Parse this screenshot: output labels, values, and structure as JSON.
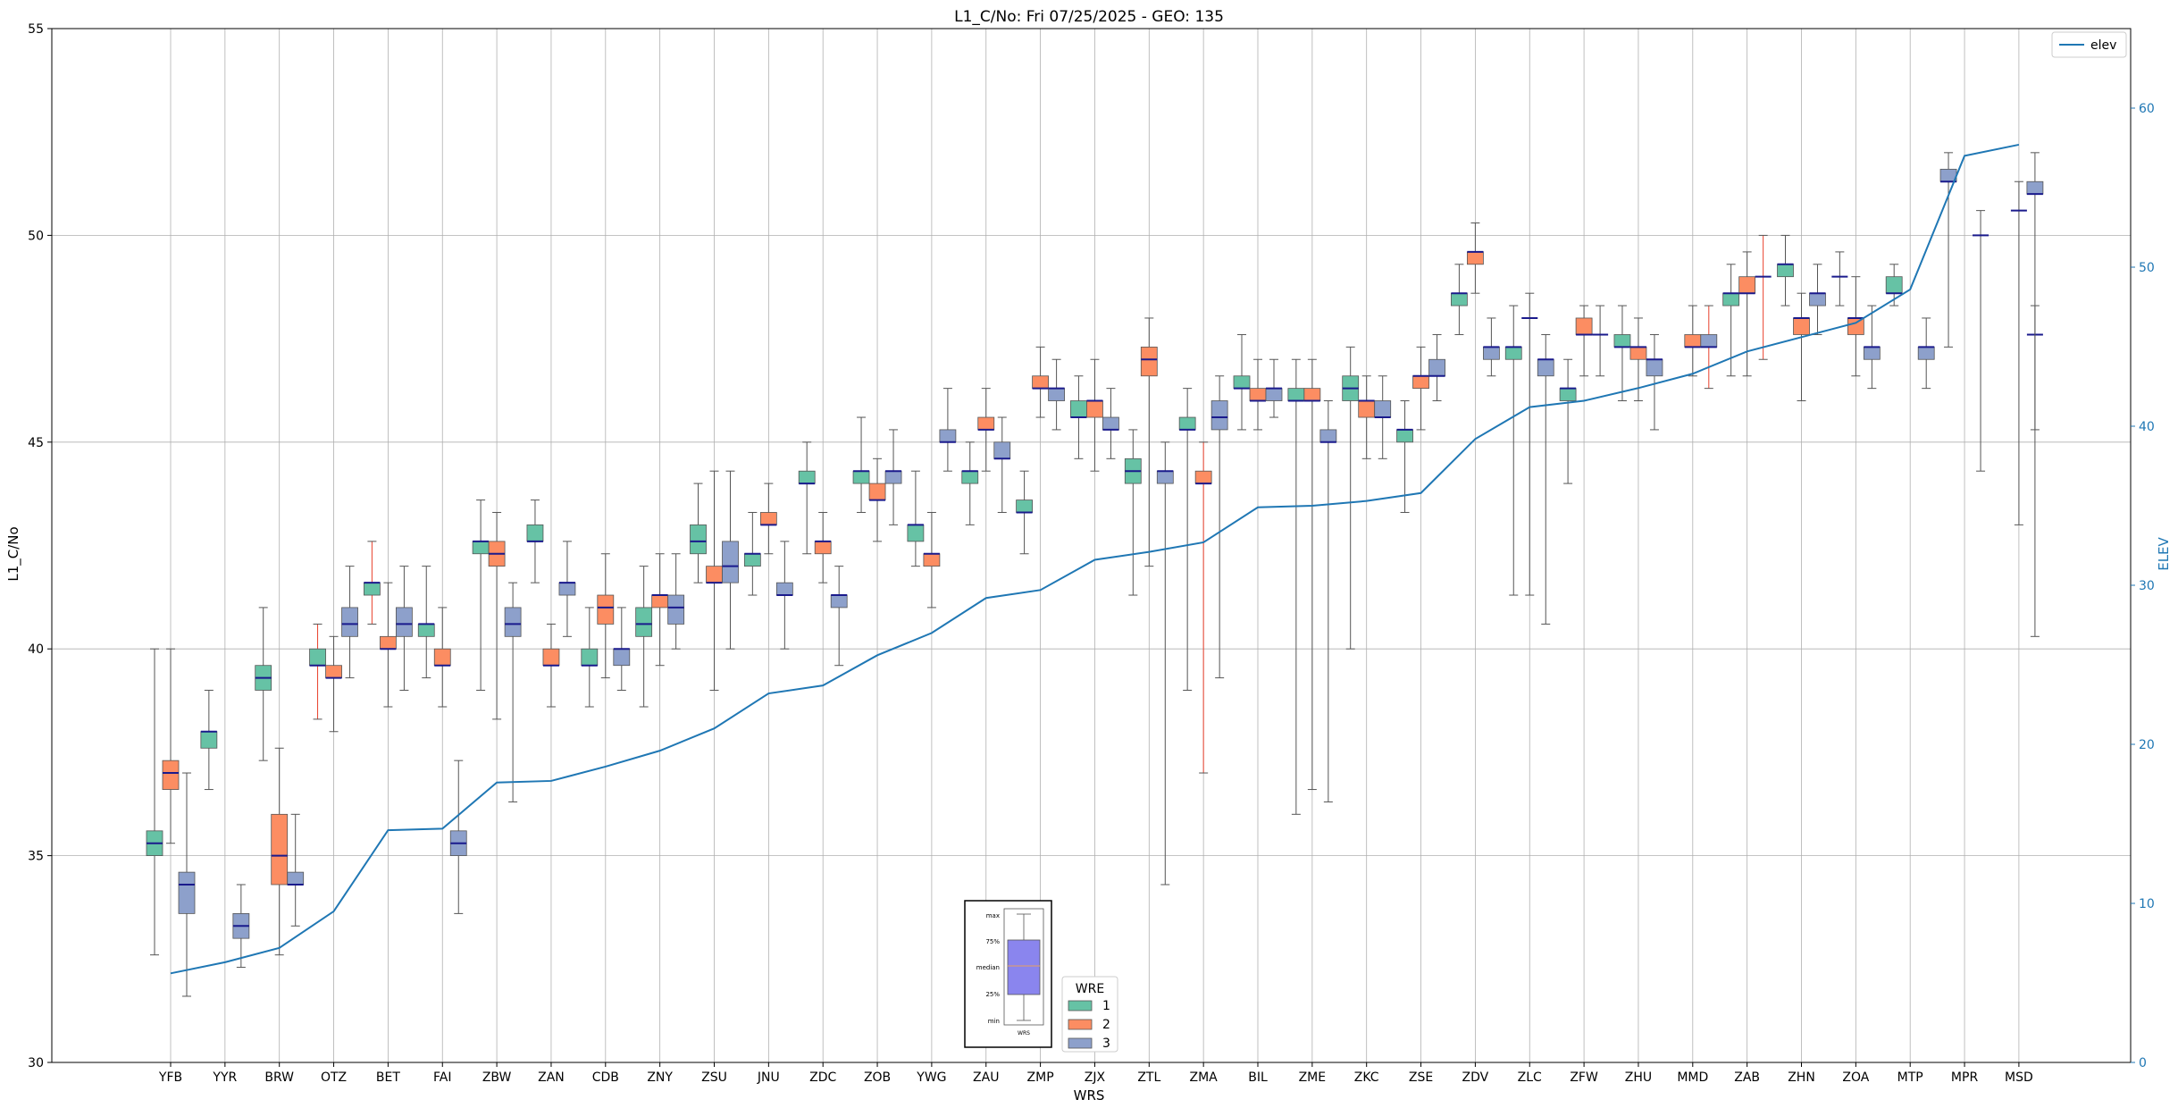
{
  "chart_data": {
    "type": "box",
    "title": "L1_C/No: Fri 07/25/2025 - GEO: 135",
    "xlabel": "WRS",
    "ylabel": "L1_C/No",
    "y2label": "ELEV",
    "ylim": [
      30,
      55
    ],
    "y2lim": [
      0,
      65
    ],
    "yticks": [
      30,
      35,
      40,
      45,
      50,
      55
    ],
    "y2ticks": [
      0,
      10,
      20,
      30,
      40,
      50,
      60
    ],
    "grid": true,
    "categories": [
      "YFB",
      "YYR",
      "BRW",
      "OTZ",
      "BET",
      "FAI",
      "ZBW",
      "ZAN",
      "CDB",
      "ZNY",
      "ZSU",
      "JNU",
      "ZDC",
      "ZOB",
      "YWG",
      "ZAU",
      "ZMP",
      "ZJX",
      "ZTL",
      "ZMA",
      "BIL",
      "ZME",
      "ZKC",
      "ZSE",
      "ZDV",
      "ZLC",
      "ZFW",
      "ZHU",
      "MMD",
      "ZAB",
      "ZHN",
      "ZOA",
      "MTP",
      "MPR",
      "MSD"
    ],
    "legend_elev": {
      "label": "elev",
      "placement": "upper right",
      "color": "#1f77b4"
    },
    "legend_wre": {
      "title": "WRE",
      "placement": "lower center",
      "items": [
        {
          "label": "1",
          "color": "#66c2a5"
        },
        {
          "label": "2",
          "color": "#fc8d62"
        },
        {
          "label": "3",
          "color": "#8da0cb"
        }
      ]
    },
    "box_key": {
      "labels": [
        "max",
        "75%",
        "median",
        "25%",
        "min"
      ],
      "xlabel": "WRS",
      "fill": "#8a85ee"
    },
    "elev": {
      "name": "elev",
      "color": "#1f77b4",
      "values": [
        5.6,
        6.3,
        7.2,
        9.5,
        14.6,
        14.7,
        17.6,
        17.7,
        18.6,
        19.6,
        21.0,
        23.2,
        23.7,
        25.6,
        27.0,
        29.2,
        29.7,
        31.6,
        32.1,
        32.7,
        34.9,
        35.0,
        35.3,
        35.8,
        39.2,
        41.2,
        41.6,
        42.4,
        43.3,
        44.7,
        45.6,
        46.5,
        48.6,
        57.0,
        57.7
      ]
    },
    "boxes": [
      {
        "cat": "YFB",
        "wre": 1,
        "min": 32.6,
        "q1": 35.0,
        "median": 35.3,
        "q3": 35.6,
        "max": 40.0
      },
      {
        "cat": "YFB",
        "wre": 2,
        "min": 35.3,
        "q1": 36.6,
        "median": 37.0,
        "q3": 37.3,
        "max": 40.0
      },
      {
        "cat": "YFB",
        "wre": 3,
        "min": 31.6,
        "q1": 33.6,
        "median": 34.3,
        "q3": 34.6,
        "max": 37.0
      },
      {
        "cat": "YYR",
        "wre": 1,
        "min": 36.6,
        "q1": 37.6,
        "median": 38.0,
        "q3": 38.0,
        "max": 39.0
      },
      {
        "cat": "YYR",
        "wre": 3,
        "min": 32.3,
        "q1": 33.0,
        "median": 33.3,
        "q3": 33.6,
        "max": 34.3
      },
      {
        "cat": "BRW",
        "wre": 1,
        "min": 37.3,
        "q1": 39.0,
        "median": 39.3,
        "q3": 39.6,
        "max": 41.0
      },
      {
        "cat": "BRW",
        "wre": 2,
        "min": 32.6,
        "q1": 34.3,
        "median": 35.0,
        "q3": 36.0,
        "max": 37.6
      },
      {
        "cat": "BRW",
        "wre": 3,
        "min": 33.3,
        "q1": 34.3,
        "median": 34.3,
        "q3": 34.6,
        "max": 36.0
      },
      {
        "cat": "OTZ",
        "wre": 1,
        "min": 38.3,
        "q1": 39.6,
        "median": 39.6,
        "q3": 40.0,
        "max": 40.6,
        "red": true
      },
      {
        "cat": "OTZ",
        "wre": 2,
        "min": 38.0,
        "q1": 39.3,
        "median": 39.3,
        "q3": 39.6,
        "max": 40.3
      },
      {
        "cat": "OTZ",
        "wre": 3,
        "min": 39.3,
        "q1": 40.3,
        "median": 40.6,
        "q3": 41.0,
        "max": 42.0
      },
      {
        "cat": "BET",
        "wre": 1,
        "min": 40.6,
        "q1": 41.3,
        "median": 41.6,
        "q3": 41.6,
        "max": 42.6,
        "red": true
      },
      {
        "cat": "BET",
        "wre": 2,
        "min": 38.6,
        "q1": 40.0,
        "median": 40.0,
        "q3": 40.3,
        "max": 41.6
      },
      {
        "cat": "BET",
        "wre": 3,
        "min": 39.0,
        "q1": 40.3,
        "median": 40.6,
        "q3": 41.0,
        "max": 42.0
      },
      {
        "cat": "FAI",
        "wre": 1,
        "min": 39.3,
        "q1": 40.3,
        "median": 40.6,
        "q3": 40.6,
        "max": 42.0
      },
      {
        "cat": "FAI",
        "wre": 2,
        "min": 38.6,
        "q1": 39.6,
        "median": 39.6,
        "q3": 40.0,
        "max": 41.0
      },
      {
        "cat": "FAI",
        "wre": 3,
        "min": 33.6,
        "q1": 35.0,
        "median": 35.3,
        "q3": 35.6,
        "max": 37.3
      },
      {
        "cat": "ZBW",
        "wre": 1,
        "min": 39.0,
        "q1": 42.3,
        "median": 42.6,
        "q3": 42.6,
        "max": 43.6
      },
      {
        "cat": "ZBW",
        "wre": 2,
        "min": 38.3,
        "q1": 42.0,
        "median": 42.3,
        "q3": 42.6,
        "max": 43.3
      },
      {
        "cat": "ZBW",
        "wre": 3,
        "min": 36.3,
        "q1": 40.3,
        "median": 40.6,
        "q3": 41.0,
        "max": 41.6
      },
      {
        "cat": "ZAN",
        "wre": 1,
        "min": 41.6,
        "q1": 42.6,
        "median": 42.6,
        "q3": 43.0,
        "max": 43.6
      },
      {
        "cat": "ZAN",
        "wre": 2,
        "min": 38.6,
        "q1": 39.6,
        "median": 39.6,
        "q3": 40.0,
        "max": 40.6
      },
      {
        "cat": "ZAN",
        "wre": 3,
        "min": 40.3,
        "q1": 41.3,
        "median": 41.6,
        "q3": 41.6,
        "max": 42.6
      },
      {
        "cat": "CDB",
        "wre": 1,
        "min": 38.6,
        "q1": 39.6,
        "median": 39.6,
        "q3": 40.0,
        "max": 41.0
      },
      {
        "cat": "CDB",
        "wre": 2,
        "min": 39.3,
        "q1": 40.6,
        "median": 41.0,
        "q3": 41.3,
        "max": 42.3
      },
      {
        "cat": "CDB",
        "wre": 3,
        "min": 39.0,
        "q1": 39.6,
        "median": 40.0,
        "q3": 40.0,
        "max": 41.0
      },
      {
        "cat": "ZNY",
        "wre": 1,
        "min": 38.6,
        "q1": 40.3,
        "median": 40.6,
        "q3": 41.0,
        "max": 42.0
      },
      {
        "cat": "ZNY",
        "wre": 2,
        "min": 39.6,
        "q1": 41.0,
        "median": 41.3,
        "q3": 41.3,
        "max": 42.3
      },
      {
        "cat": "ZNY",
        "wre": 3,
        "min": 40.0,
        "q1": 40.6,
        "median": 41.0,
        "q3": 41.3,
        "max": 42.3
      },
      {
        "cat": "ZSU",
        "wre": 1,
        "min": 41.6,
        "q1": 42.3,
        "median": 42.6,
        "q3": 43.0,
        "max": 44.0
      },
      {
        "cat": "ZSU",
        "wre": 2,
        "min": 39.0,
        "q1": 41.6,
        "median": 41.6,
        "q3": 42.0,
        "max": 44.3
      },
      {
        "cat": "ZSU",
        "wre": 3,
        "min": 40.0,
        "q1": 41.6,
        "median": 42.0,
        "q3": 42.6,
        "max": 44.3
      },
      {
        "cat": "JNU",
        "wre": 1,
        "min": 41.3,
        "q1": 42.0,
        "median": 42.3,
        "q3": 42.3,
        "max": 43.3
      },
      {
        "cat": "JNU",
        "wre": 2,
        "min": 42.3,
        "q1": 43.0,
        "median": 43.0,
        "q3": 43.3,
        "max": 44.0
      },
      {
        "cat": "JNU",
        "wre": 3,
        "min": 40.0,
        "q1": 41.3,
        "median": 41.3,
        "q3": 41.6,
        "max": 42.6
      },
      {
        "cat": "ZDC",
        "wre": 1,
        "min": 42.3,
        "q1": 44.0,
        "median": 44.0,
        "q3": 44.3,
        "max": 45.0
      },
      {
        "cat": "ZDC",
        "wre": 2,
        "min": 41.6,
        "q1": 42.3,
        "median": 42.6,
        "q3": 42.6,
        "max": 43.3
      },
      {
        "cat": "ZDC",
        "wre": 3,
        "min": 39.6,
        "q1": 41.0,
        "median": 41.3,
        "q3": 41.3,
        "max": 42.0
      },
      {
        "cat": "ZOB",
        "wre": 1,
        "min": 43.3,
        "q1": 44.0,
        "median": 44.3,
        "q3": 44.3,
        "max": 45.6
      },
      {
        "cat": "ZOB",
        "wre": 2,
        "min": 42.6,
        "q1": 43.6,
        "median": 43.6,
        "q3": 44.0,
        "max": 44.6
      },
      {
        "cat": "ZOB",
        "wre": 3,
        "min": 43.0,
        "q1": 44.0,
        "median": 44.3,
        "q3": 44.3,
        "max": 45.3
      },
      {
        "cat": "YWG",
        "wre": 1,
        "min": 42.0,
        "q1": 42.6,
        "median": 43.0,
        "q3": 43.0,
        "max": 44.3
      },
      {
        "cat": "YWG",
        "wre": 2,
        "min": 41.0,
        "q1": 42.0,
        "median": 42.3,
        "q3": 42.3,
        "max": 43.3
      },
      {
        "cat": "YWG",
        "wre": 3,
        "min": 44.3,
        "q1": 45.0,
        "median": 45.0,
        "q3": 45.3,
        "max": 46.3
      },
      {
        "cat": "ZAU",
        "wre": 1,
        "min": 43.0,
        "q1": 44.0,
        "median": 44.3,
        "q3": 44.3,
        "max": 45.0
      },
      {
        "cat": "ZAU",
        "wre": 2,
        "min": 44.3,
        "q1": 45.3,
        "median": 45.3,
        "q3": 45.6,
        "max": 46.3
      },
      {
        "cat": "ZAU",
        "wre": 3,
        "min": 43.3,
        "q1": 44.6,
        "median": 44.6,
        "q3": 45.0,
        "max": 45.6
      },
      {
        "cat": "ZMP",
        "wre": 1,
        "min": 42.3,
        "q1": 43.3,
        "median": 43.3,
        "q3": 43.6,
        "max": 44.3
      },
      {
        "cat": "ZMP",
        "wre": 2,
        "min": 45.6,
        "q1": 46.3,
        "median": 46.3,
        "q3": 46.6,
        "max": 47.3
      },
      {
        "cat": "ZMP",
        "wre": 3,
        "min": 45.3,
        "q1": 46.0,
        "median": 46.3,
        "q3": 46.3,
        "max": 47.0
      },
      {
        "cat": "ZJX",
        "wre": 1,
        "min": 44.6,
        "q1": 45.6,
        "median": 45.6,
        "q3": 46.0,
        "max": 46.6
      },
      {
        "cat": "ZJX",
        "wre": 2,
        "min": 44.3,
        "q1": 45.6,
        "median": 46.0,
        "q3": 46.0,
        "max": 47.0
      },
      {
        "cat": "ZJX",
        "wre": 3,
        "min": 44.6,
        "q1": 45.3,
        "median": 45.3,
        "q3": 45.6,
        "max": 46.3
      },
      {
        "cat": "ZTL",
        "wre": 1,
        "min": 41.3,
        "q1": 44.0,
        "median": 44.3,
        "q3": 44.6,
        "max": 45.3
      },
      {
        "cat": "ZTL",
        "wre": 2,
        "min": 42.0,
        "q1": 46.6,
        "median": 47.0,
        "q3": 47.3,
        "max": 48.0
      },
      {
        "cat": "ZTL",
        "wre": 3,
        "min": 34.3,
        "q1": 44.0,
        "median": 44.3,
        "q3": 44.3,
        "max": 45.0
      },
      {
        "cat": "ZMA",
        "wre": 1,
        "min": 39.0,
        "q1": 45.3,
        "median": 45.3,
        "q3": 45.6,
        "max": 46.3
      },
      {
        "cat": "ZMA",
        "wre": 2,
        "min": 37.0,
        "q1": 44.0,
        "median": 44.0,
        "q3": 44.3,
        "max": 45.0,
        "red": true
      },
      {
        "cat": "ZMA",
        "wre": 3,
        "min": 39.3,
        "q1": 45.3,
        "median": 45.6,
        "q3": 46.0,
        "max": 46.6
      },
      {
        "cat": "BIL",
        "wre": 1,
        "min": 45.3,
        "q1": 46.3,
        "median": 46.3,
        "q3": 46.6,
        "max": 47.6
      },
      {
        "cat": "BIL",
        "wre": 2,
        "min": 45.3,
        "q1": 46.0,
        "median": 46.0,
        "q3": 46.3,
        "max": 47.0
      },
      {
        "cat": "BIL",
        "wre": 3,
        "min": 45.6,
        "q1": 46.0,
        "median": 46.3,
        "q3": 46.3,
        "max": 47.0
      },
      {
        "cat": "ZME",
        "wre": 1,
        "min": 36.0,
        "q1": 46.0,
        "median": 46.0,
        "q3": 46.3,
        "max": 47.0
      },
      {
        "cat": "ZME",
        "wre": 2,
        "min": 36.6,
        "q1": 46.0,
        "median": 46.0,
        "q3": 46.3,
        "max": 47.0
      },
      {
        "cat": "ZME",
        "wre": 3,
        "min": 36.3,
        "q1": 45.0,
        "median": 45.0,
        "q3": 45.3,
        "max": 46.0
      },
      {
        "cat": "ZKC",
        "wre": 1,
        "min": 40.0,
        "q1": 46.0,
        "median": 46.3,
        "q3": 46.6,
        "max": 47.3
      },
      {
        "cat": "ZKC",
        "wre": 2,
        "min": 44.6,
        "q1": 45.6,
        "median": 46.0,
        "q3": 46.0,
        "max": 46.6
      },
      {
        "cat": "ZKC",
        "wre": 3,
        "min": 44.6,
        "q1": 45.6,
        "median": 45.6,
        "q3": 46.0,
        "max": 46.6
      },
      {
        "cat": "ZSE",
        "wre": 1,
        "min": 43.3,
        "q1": 45.0,
        "median": 45.3,
        "q3": 45.3,
        "max": 46.0
      },
      {
        "cat": "ZSE",
        "wre": 2,
        "min": 45.3,
        "q1": 46.3,
        "median": 46.6,
        "q3": 46.6,
        "max": 47.3
      },
      {
        "cat": "ZSE",
        "wre": 3,
        "min": 46.0,
        "q1": 46.6,
        "median": 46.6,
        "q3": 47.0,
        "max": 47.6
      },
      {
        "cat": "ZDV",
        "wre": 1,
        "min": 47.6,
        "q1": 48.3,
        "median": 48.6,
        "q3": 48.6,
        "max": 49.3
      },
      {
        "cat": "ZDV",
        "wre": 2,
        "min": 48.6,
        "q1": 49.3,
        "median": 49.6,
        "q3": 49.6,
        "max": 50.3
      },
      {
        "cat": "ZDV",
        "wre": 3,
        "min": 46.6,
        "q1": 47.0,
        "median": 47.3,
        "q3": 47.3,
        "max": 48.0
      },
      {
        "cat": "ZLC",
        "wre": 1,
        "min": 41.3,
        "q1": 47.0,
        "median": 47.3,
        "q3": 47.3,
        "max": 48.3
      },
      {
        "cat": "ZLC",
        "wre": 2,
        "min": 41.3,
        "q1": 48.0,
        "median": 48.0,
        "q3": 48.0,
        "max": 48.6
      },
      {
        "cat": "ZLC",
        "wre": 3,
        "min": 40.6,
        "q1": 46.6,
        "median": 47.0,
        "q3": 47.0,
        "max": 47.6
      },
      {
        "cat": "ZFW",
        "wre": 1,
        "min": 44.0,
        "q1": 46.0,
        "median": 46.3,
        "q3": 46.3,
        "max": 47.0
      },
      {
        "cat": "ZFW",
        "wre": 2,
        "min": 46.6,
        "q1": 47.6,
        "median": 47.6,
        "q3": 48.0,
        "max": 48.3
      },
      {
        "cat": "ZFW",
        "wre": 3,
        "min": 46.6,
        "q1": 47.6,
        "median": 47.6,
        "q3": 47.6,
        "max": 48.3
      },
      {
        "cat": "ZHU",
        "wre": 1,
        "min": 46.0,
        "q1": 47.3,
        "median": 47.3,
        "q3": 47.6,
        "max": 48.3
      },
      {
        "cat": "ZHU",
        "wre": 2,
        "min": 46.0,
        "q1": 47.0,
        "median": 47.3,
        "q3": 47.3,
        "max": 48.0
      },
      {
        "cat": "ZHU",
        "wre": 3,
        "min": 45.3,
        "q1": 46.6,
        "median": 47.0,
        "q3": 47.0,
        "max": 47.6
      },
      {
        "cat": "MMD",
        "wre": 2,
        "min": 46.6,
        "q1": 47.3,
        "median": 47.3,
        "q3": 47.6,
        "max": 48.3
      },
      {
        "cat": "MMD",
        "wre": 3,
        "min": 46.3,
        "q1": 47.3,
        "median": 47.3,
        "q3": 47.6,
        "max": 48.3,
        "red": true
      },
      {
        "cat": "ZAB",
        "wre": 1,
        "min": 46.6,
        "q1": 48.3,
        "median": 48.6,
        "q3": 48.6,
        "max": 49.3
      },
      {
        "cat": "ZAB",
        "wre": 2,
        "min": 46.6,
        "q1": 48.6,
        "median": 48.6,
        "q3": 49.0,
        "max": 49.6
      },
      {
        "cat": "ZAB",
        "wre": 3,
        "min": 47.0,
        "q1": 49.0,
        "median": 49.0,
        "q3": 49.0,
        "max": 50.0,
        "red": true
      },
      {
        "cat": "ZHN",
        "wre": 1,
        "min": 48.3,
        "q1": 49.0,
        "median": 49.3,
        "q3": 49.3,
        "max": 50.0
      },
      {
        "cat": "ZHN",
        "wre": 2,
        "min": 46.0,
        "q1": 47.6,
        "median": 48.0,
        "q3": 48.0,
        "max": 48.6
      },
      {
        "cat": "ZHN",
        "wre": 3,
        "min": 47.6,
        "q1": 48.3,
        "median": 48.6,
        "q3": 48.6,
        "max": 49.3
      },
      {
        "cat": "ZOA",
        "wre": 1,
        "min": 48.3,
        "q1": 49.0,
        "median": 49.0,
        "q3": 49.0,
        "max": 49.6
      },
      {
        "cat": "ZOA",
        "wre": 2,
        "min": 46.6,
        "q1": 47.6,
        "median": 48.0,
        "q3": 48.0,
        "max": 49.0
      },
      {
        "cat": "ZOA",
        "wre": 3,
        "min": 46.3,
        "q1": 47.0,
        "median": 47.3,
        "q3": 47.3,
        "max": 48.3
      },
      {
        "cat": "MTP",
        "wre": 1,
        "min": 48.3,
        "q1": 48.6,
        "median": 48.6,
        "q3": 49.0,
        "max": 49.3
      },
      {
        "cat": "MTP",
        "wre": 3,
        "min": 46.3,
        "q1": 47.0,
        "median": 47.3,
        "q3": 47.3,
        "max": 48.0
      },
      {
        "cat": "MPR",
        "wre": 3,
        "min": 44.3,
        "q1": 50.0,
        "median": 50.0,
        "q3": 50.0,
        "max": 50.6
      },
      {
        "cat": "MPR",
        "wre": 3,
        "slot": 4,
        "min": 47.3,
        "q1": 51.3,
        "median": 51.3,
        "q3": 51.6,
        "max": 52.0
      },
      {
        "cat": "MSD",
        "wre": 3,
        "min": 40.3,
        "q1": 47.6,
        "median": 47.6,
        "q3": 47.6,
        "max": 48.3
      },
      {
        "cat": "MSD",
        "wre": 3,
        "slot": 2,
        "min": 43.0,
        "q1": 50.6,
        "median": 50.6,
        "q3": 50.6,
        "max": 51.3
      },
      {
        "cat": "MSD",
        "wre": 3,
        "slot": 3,
        "min": 45.3,
        "q1": 51.0,
        "median": 51.0,
        "q3": 51.3,
        "max": 52.0
      }
    ]
  }
}
